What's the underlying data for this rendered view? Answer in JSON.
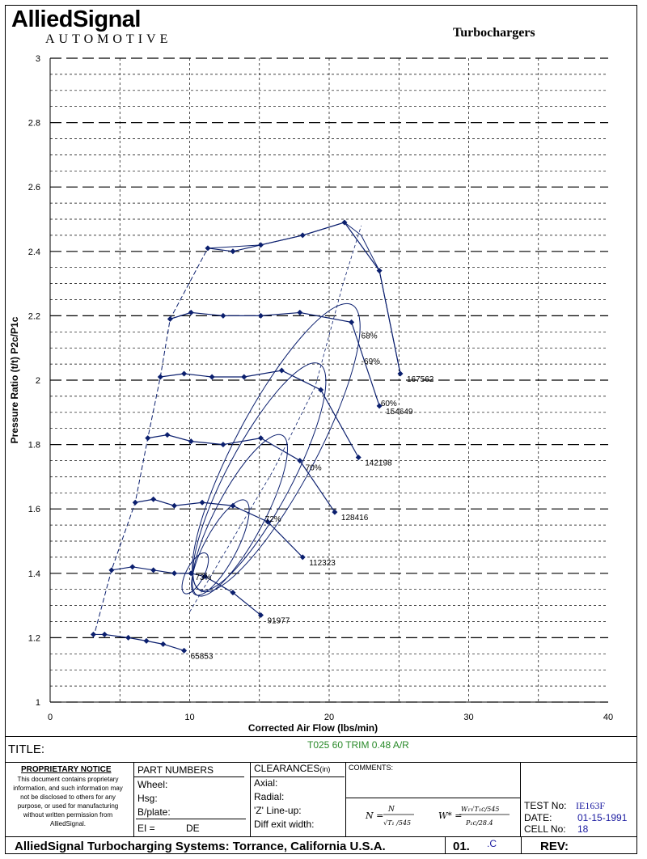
{
  "header": {
    "logo_main": "AlliedSignal",
    "logo_sub": "AUTOMOTIVE",
    "doc_title": "Turbochargers"
  },
  "chart_data": {
    "type": "line",
    "title": "",
    "xlabel": "Corrected Air Flow (lbs/min)",
    "ylabel": "Pressure Ratio  (t/t)  P2c/P1c",
    "xlim": [
      0,
      40
    ],
    "ylim": [
      1,
      3
    ],
    "x_ticks": [
      "0",
      "10",
      "20",
      "30",
      "40"
    ],
    "y_ticks": [
      "1",
      "1.2",
      "1.4",
      "1.6",
      "1.8",
      "2",
      "2.2",
      "2.4",
      "2.6",
      "2.8",
      "3"
    ],
    "grid": true,
    "speed_lines": [
      {
        "name": "65853",
        "points": [
          [
            3.1,
            1.21
          ],
          [
            3.9,
            1.21
          ],
          [
            5.6,
            1.2
          ],
          [
            6.9,
            1.19
          ],
          [
            8.1,
            1.18
          ],
          [
            9.6,
            1.16
          ]
        ]
      },
      {
        "name": "91977",
        "points": [
          [
            4.4,
            1.41
          ],
          [
            5.9,
            1.42
          ],
          [
            7.4,
            1.41
          ],
          [
            8.9,
            1.4
          ],
          [
            10.1,
            1.4
          ],
          [
            11.1,
            1.39
          ],
          [
            13.1,
            1.34
          ],
          [
            15.1,
            1.27
          ]
        ]
      },
      {
        "name": "112323",
        "points": [
          [
            6.1,
            1.62
          ],
          [
            7.4,
            1.63
          ],
          [
            8.9,
            1.61
          ],
          [
            10.9,
            1.62
          ],
          [
            13.1,
            1.61
          ],
          [
            15.6,
            1.56
          ],
          [
            18.1,
            1.45
          ]
        ]
      },
      {
        "name": "128416",
        "points": [
          [
            7.0,
            1.82
          ],
          [
            8.4,
            1.83
          ],
          [
            10.1,
            1.81
          ],
          [
            12.4,
            1.8
          ],
          [
            15.1,
            1.82
          ],
          [
            17.9,
            1.75
          ],
          [
            20.4,
            1.59
          ]
        ]
      },
      {
        "name": "142198",
        "points": [
          [
            7.9,
            2.01
          ],
          [
            9.6,
            2.02
          ],
          [
            11.6,
            2.01
          ],
          [
            13.9,
            2.01
          ],
          [
            16.6,
            2.03
          ],
          [
            19.4,
            1.97
          ],
          [
            22.1,
            1.76
          ]
        ]
      },
      {
        "name": "154649",
        "points": [
          [
            8.6,
            2.19
          ],
          [
            10.1,
            2.21
          ],
          [
            12.4,
            2.2
          ],
          [
            15.1,
            2.2
          ],
          [
            17.9,
            2.21
          ],
          [
            21.6,
            2.18
          ],
          [
            23.6,
            1.92
          ]
        ]
      },
      {
        "name": "167562",
        "points": [
          [
            11.3,
            2.41
          ],
          [
            13.1,
            2.4
          ],
          [
            15.1,
            2.42
          ],
          [
            18.1,
            2.45
          ],
          [
            21.1,
            2.49
          ],
          [
            23.6,
            2.34
          ],
          [
            25.1,
            2.02
          ]
        ]
      }
    ],
    "surge_line": [
      [
        3.1,
        1.2
      ],
      [
        4.4,
        1.41
      ],
      [
        6.1,
        1.62
      ],
      [
        7.0,
        1.82
      ],
      [
        7.9,
        2.01
      ],
      [
        8.6,
        2.19
      ],
      [
        11.3,
        2.41
      ]
    ],
    "efficiency_islands": [
      {
        "label": "73%",
        "center": [
          10.4,
          1.38
        ]
      },
      {
        "label": "72%",
        "center": [
          15.4,
          1.56
        ]
      },
      {
        "label": "70%",
        "center": [
          18.3,
          1.72
        ]
      },
      {
        "label": "-69%",
        "center": [
          22.3,
          2.05
        ]
      },
      {
        "label": "68%",
        "center": [
          22.3,
          2.13
        ]
      },
      {
        "label": "60%",
        "center": [
          23.7,
          1.92
        ]
      }
    ]
  },
  "form": {
    "title_label": "TITLE:",
    "test_name": "T025 60 TRIM  0.48 A/R",
    "proprietary_title": "PROPRIETARY NOTICE",
    "proprietary_text": "This document contains proprietary information, and such information may not be disclosed to others for any purpose, or used for manufacturing without written permission from AlliedSignal.",
    "part_numbers_title": "PART NUMBERS",
    "wheel_label": "Wheel:",
    "hsg_label": "Hsg:",
    "bplate_label": "B/plate:",
    "ei_label": "EI =",
    "de_label": "DE",
    "clearances_title": "CLEARANCES",
    "clearances_unit": "(in)",
    "axial_label": "Axial:",
    "radial_label": "Radial:",
    "zline_label": "'Z' Line-up:",
    "diff_label": "Diff exit width:",
    "comments_label": "COMMENTS:",
    "test_no_label": "TEST No:",
    "test_no_value": "IE163F",
    "date_label": "DATE:",
    "date_value": "01-15-1991",
    "cell_no_label": "CELL No:",
    "cell_no_value": "18",
    "footer": "AlliedSignal Turbocharging Systems: Torrance, California U.S.A.",
    "code": "01.",
    "code_suffix": ".C",
    "rev_label": "REV:"
  }
}
